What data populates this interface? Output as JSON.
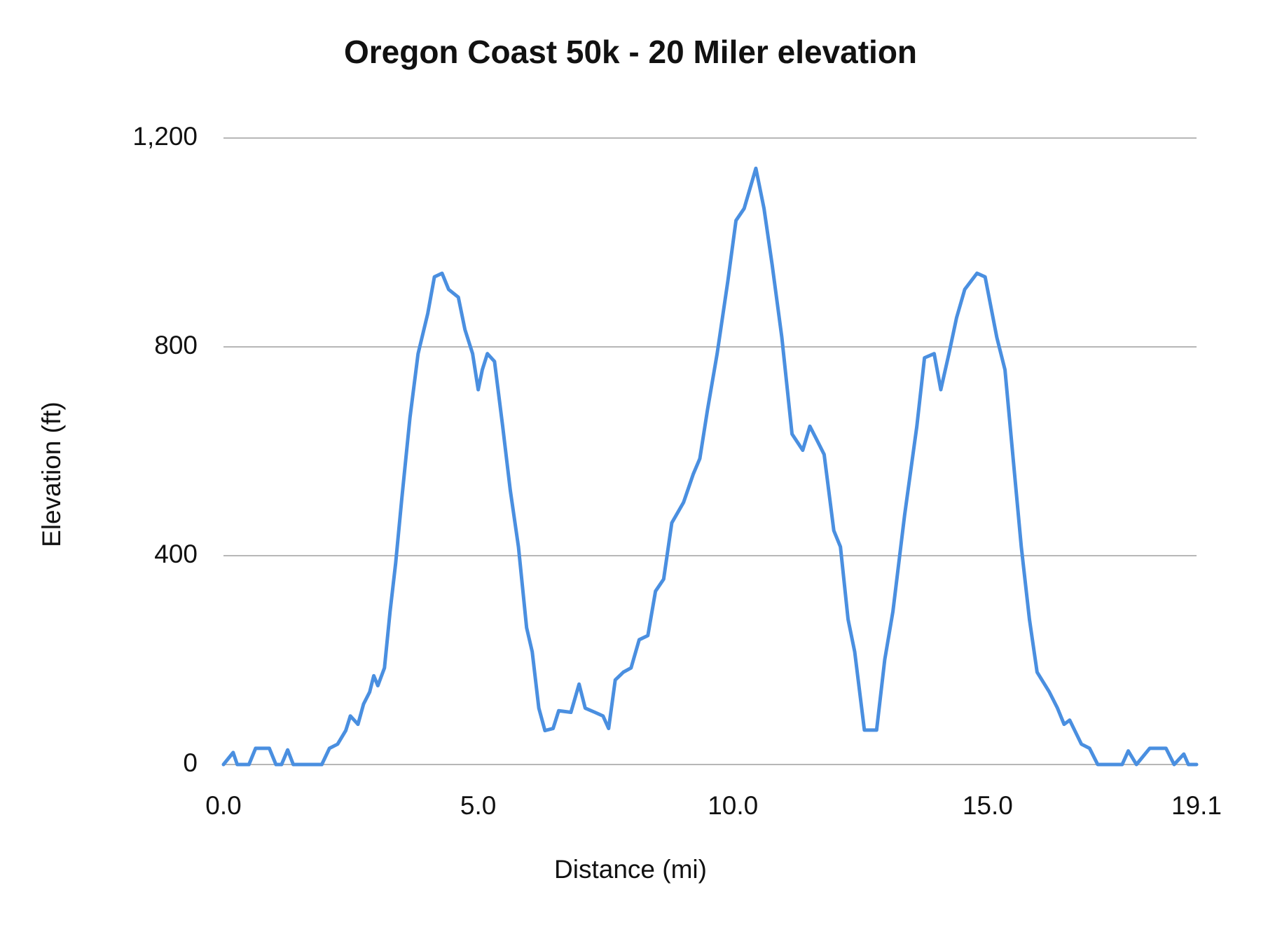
{
  "chart_data": {
    "type": "line",
    "title": "Oregon Coast 50k - 20 Miler elevation",
    "x_label": "Distance (mi)",
    "y_label": "Elevation (ft)",
    "xlim": [
      0,
      19.1
    ],
    "xticks": [
      {
        "value": 0,
        "label": "0.0"
      },
      {
        "value": 5,
        "label": "5.0"
      },
      {
        "value": 10,
        "label": "10.0"
      },
      {
        "value": 15,
        "label": "15.0"
      },
      {
        "value": 19.1,
        "label": "19.1"
      }
    ],
    "ylim": [
      0,
      1200
    ],
    "yticks": [
      0,
      400,
      800,
      {
        "value": 1200,
        "label": "1,200"
      }
    ],
    "grid": true,
    "x": [
      0,
      0.19,
      0.27,
      0.5,
      0.63,
      0.9,
      1.03,
      1.14,
      1.26,
      1.37,
      1.93,
      2.08,
      2.24,
      2.4,
      2.49,
      2.64,
      2.75,
      2.87,
      2.95,
      3.03,
      3.16,
      3.27,
      3.38,
      3.5,
      3.66,
      3.82,
      4.01,
      4.14,
      4.29,
      4.42,
      4.61,
      4.74,
      4.89,
      5.0,
      5.08,
      5.18,
      5.32,
      5.48,
      5.63,
      5.79,
      5.95,
      6.06,
      6.19,
      6.31,
      6.47,
      6.58,
      6.82,
      6.98,
      7.1,
      7.29,
      7.45,
      7.56,
      7.69,
      7.85,
      8.0,
      8.16,
      8.33,
      8.48,
      8.64,
      8.8,
      9.03,
      9.22,
      9.35,
      9.5,
      9.69,
      9.9,
      10.06,
      10.22,
      10.45,
      10.61,
      10.77,
      10.96,
      11.16,
      11.37,
      11.51,
      11.63,
      11.79,
      11.98,
      12.11,
      12.26,
      12.39,
      12.58,
      12.82,
      12.98,
      13.14,
      13.37,
      13.61,
      13.76,
      13.95,
      14.08,
      14.24,
      14.39,
      14.55,
      14.79,
      14.95,
      15.18,
      15.34,
      15.5,
      15.66,
      15.82,
      15.97,
      16.21,
      16.37,
      16.5,
      16.61,
      16.84,
      17.0,
      17.16,
      17.64,
      17.76,
      17.92,
      18.18,
      18.5,
      18.66,
      18.85,
      18.94,
      19.1
    ],
    "series": [
      {
        "name": "Elevation",
        "color": "#4a8fe0",
        "values": [
          0,
          23,
          0,
          0,
          31,
          31,
          0,
          0,
          28,
          0,
          0,
          31,
          39,
          65,
          93,
          77,
          116,
          139,
          170,
          151,
          185,
          293,
          386,
          509,
          664,
          787,
          864,
          934,
          941,
          910,
          895,
          833,
          787,
          718,
          756,
          787,
          772,
          648,
          525,
          417,
          262,
          216,
          108,
          65,
          69,
          103,
          100,
          154,
          108,
          100,
          93,
          69,
          162,
          177,
          185,
          239,
          247,
          332,
          355,
          463,
          502,
          556,
          586,
          679,
          787,
          926,
          1042,
          1065,
          1142,
          1065,
          957,
          818,
          633,
          602,
          648,
          625,
          594,
          448,
          417,
          278,
          216,
          66,
          66,
          201,
          293,
          478,
          648,
          779,
          787,
          718,
          787,
          856,
          910,
          941,
          934,
          818,
          756,
          586,
          417,
          278,
          177,
          139,
          108,
          77,
          85,
          39,
          31,
          0,
          0,
          26,
          0,
          31,
          31,
          0,
          20,
          0,
          0
        ]
      }
    ]
  }
}
